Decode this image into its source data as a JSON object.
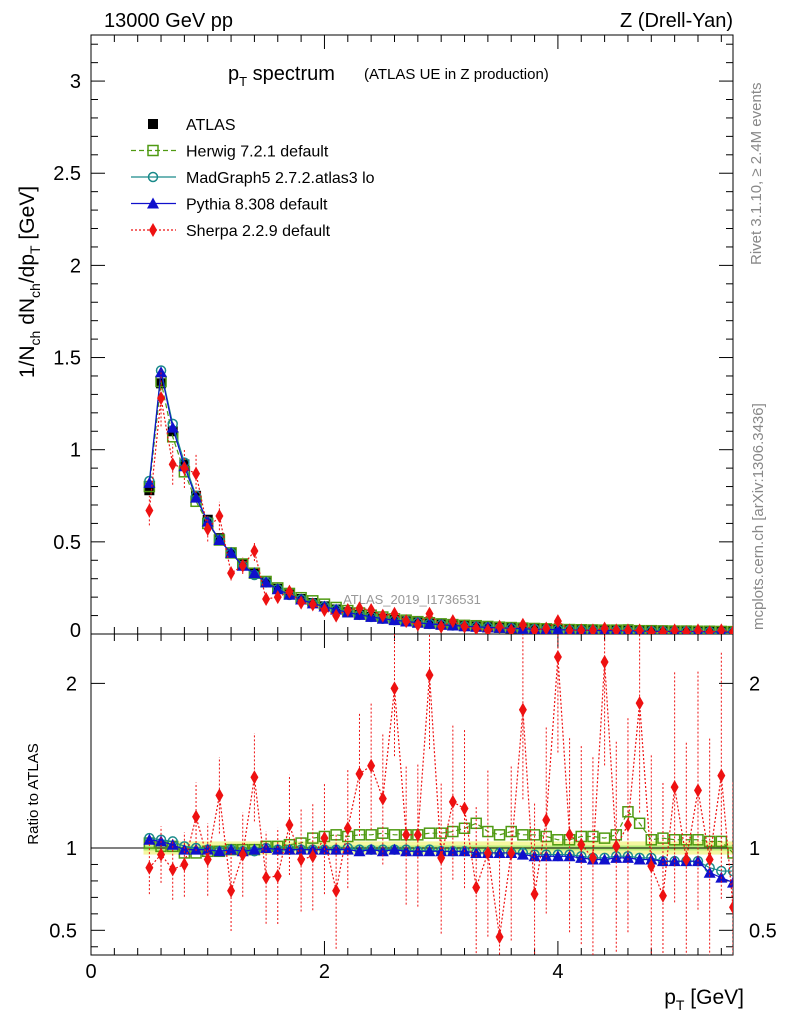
{
  "header": {
    "left": "13000 GeV pp",
    "right": "Z (Drell-Yan)"
  },
  "side_labels": {
    "rivet": "Rivet 3.1.10, ≥ 2.4M events",
    "mcplots": "mcplots.cern.ch [arXiv:1306.3436]"
  },
  "watermark": "ATLAS_2019_I1736531",
  "title": {
    "main": "p",
    "main_sub": "T",
    "main_rest": " spectrum",
    "suffix": "(ATLAS UE in Z production)"
  },
  "axes": {
    "top_ylabel": {
      "a": "1/N",
      "a_sub": "ch",
      "b": " dN",
      "b_sub": "ch",
      "c": "/dp",
      "c_sub": "T",
      "d": " [GeV]"
    },
    "bottom_ylabel": "Ratio to ATLAS",
    "xlabel": {
      "a": "p",
      "a_sub": "T",
      "b": " [GeV]"
    }
  },
  "colors": {
    "atlas": "#000000",
    "herwig": "#4f9a12",
    "madgraph": "#1a8a8a",
    "pythia": "#1010cc",
    "sherpa": "#ee1111",
    "band_outer": "#f4f7a0",
    "band_inner": "#b6ec7a"
  },
  "chart_data": [
    {
      "type": "scatter",
      "title": "p_T spectrum (ATLAS UE in Z production)",
      "xlabel": "p_T [GeV]",
      "ylabel": "1/N_ch dN_ch/dp_T [GeV]",
      "xlim": [
        0,
        5.5
      ],
      "ylim": [
        0,
        3.25
      ],
      "x_ticks": [
        0,
        2,
        4
      ],
      "y_ticks": [
        0.5,
        1,
        1.5,
        2,
        2.5,
        3
      ],
      "y_tick_labels": [
        "0.5",
        "1",
        "1.5",
        "2",
        "2.5",
        "3"
      ],
      "x": [
        0.5,
        0.6,
        0.7,
        0.8,
        0.9,
        1.0,
        1.1,
        1.2,
        1.3,
        1.4,
        1.5,
        1.6,
        1.7,
        1.8,
        1.9,
        2.0,
        2.1,
        2.2,
        2.3,
        2.4,
        2.5,
        2.6,
        2.7,
        2.8,
        2.9,
        3.0,
        3.1,
        3.2,
        3.3,
        3.4,
        3.5,
        3.6,
        3.7,
        3.8,
        3.9,
        4.0,
        4.1,
        4.2,
        4.3,
        4.4,
        4.5,
        4.6,
        4.7,
        4.8,
        4.9,
        5.0,
        5.1,
        5.2,
        5.3,
        5.4,
        5.5
      ],
      "series": [
        {
          "name": "ATLAS",
          "key": "atlas",
          "marker": "square",
          "values": [
            0.78,
            1.36,
            1.1,
            0.92,
            0.75,
            0.62,
            0.52,
            0.44,
            0.38,
            0.33,
            0.28,
            0.245,
            0.215,
            0.19,
            0.168,
            0.15,
            0.133,
            0.118,
            0.105,
            0.094,
            0.084,
            0.076,
            0.069,
            0.062,
            0.056,
            0.051,
            0.047,
            0.043,
            0.04,
            0.037,
            0.034,
            0.032,
            0.03,
            0.028,
            0.026,
            0.024,
            0.023,
            0.022,
            0.021,
            0.02,
            0.019,
            0.018,
            0.017,
            0.016,
            0.016,
            0.015,
            0.015,
            0.014,
            0.014,
            0.013,
            0.013
          ]
        },
        {
          "name": "Herwig 7.2.1 default",
          "key": "herwig",
          "marker": "open-square",
          "dash": "5,3",
          "values": [
            0.8,
            1.37,
            1.07,
            0.88,
            0.72,
            0.6,
            0.51,
            0.44,
            0.38,
            0.33,
            0.285,
            0.25,
            0.22,
            0.197,
            0.18,
            0.162,
            0.144,
            0.127,
            0.114,
            0.102,
            0.092,
            0.082,
            0.075,
            0.067,
            0.061,
            0.055,
            0.051,
            0.047,
            0.045,
            0.041,
            0.037,
            0.035,
            0.032,
            0.03,
            0.028,
            0.025,
            0.024,
            0.023,
            0.022,
            0.021,
            0.021,
            0.022,
            0.018,
            0.018,
            0.017,
            0.016,
            0.016,
            0.015,
            0.015,
            0.014,
            0.013
          ]
        },
        {
          "name": "MadGraph5 2.7.2.atlas3 lo",
          "key": "madgraph",
          "marker": "open-circle",
          "values": [
            0.83,
            1.43,
            1.14,
            0.93,
            0.75,
            0.61,
            0.51,
            0.44,
            0.37,
            0.32,
            0.28,
            0.243,
            0.212,
            0.188,
            0.166,
            0.149,
            0.132,
            0.118,
            0.104,
            0.093,
            0.083,
            0.075,
            0.068,
            0.061,
            0.055,
            0.05,
            0.046,
            0.042,
            0.039,
            0.036,
            0.033,
            0.031,
            0.029,
            0.027,
            0.025,
            0.023,
            0.022,
            0.021,
            0.019,
            0.019,
            0.018,
            0.017,
            0.016,
            0.015,
            0.014,
            0.014,
            0.014,
            0.013,
            0.012,
            0.011,
            0.011
          ]
        },
        {
          "name": "Pythia 8.308 default",
          "key": "pythia",
          "marker": "triangle",
          "values": [
            0.82,
            1.42,
            1.12,
            0.91,
            0.74,
            0.61,
            0.51,
            0.44,
            0.37,
            0.33,
            0.28,
            0.243,
            0.213,
            0.187,
            0.166,
            0.149,
            0.132,
            0.117,
            0.104,
            0.093,
            0.083,
            0.075,
            0.068,
            0.061,
            0.055,
            0.05,
            0.046,
            0.042,
            0.039,
            0.036,
            0.033,
            0.031,
            0.028,
            0.026,
            0.025,
            0.023,
            0.022,
            0.021,
            0.019,
            0.019,
            0.018,
            0.017,
            0.016,
            0.015,
            0.014,
            0.014,
            0.014,
            0.013,
            0.012,
            0.011,
            0.01
          ]
        },
        {
          "name": "Sherpa 2.2.9 default",
          "key": "sherpa",
          "marker": "diamond",
          "dash": "2,2",
          "values": [
            0.67,
            1.28,
            0.92,
            0.9,
            0.87,
            0.57,
            0.64,
            0.33,
            0.37,
            0.45,
            0.19,
            0.2,
            0.23,
            0.17,
            0.16,
            0.13,
            0.1,
            0.13,
            0.14,
            0.13,
            0.1,
            0.11,
            0.07,
            0.05,
            0.11,
            0.04,
            0.07,
            0.04,
            0.03,
            0.02,
            0.04,
            0.02,
            0.05,
            0.02,
            0.03,
            0.07,
            0.02,
            0.02,
            0.02,
            0.03,
            0.02,
            0.02,
            0.02,
            0.01,
            0.01,
            0.02,
            0.01,
            0.02,
            0.01,
            0.02,
            0.01
          ]
        }
      ]
    },
    {
      "type": "scatter",
      "title": "",
      "xlabel": "p_T [GeV]",
      "ylabel": "Ratio to ATLAS",
      "xlim": [
        0,
        5.5
      ],
      "ylim": [
        0.35,
        2.3
      ],
      "y_ticks": [
        0.5,
        1,
        2
      ],
      "y_tick_labels": [
        "0.5",
        "1",
        "2"
      ],
      "reference_line": 1,
      "x": [
        0.5,
        0.6,
        0.7,
        0.8,
        0.9,
        1.0,
        1.1,
        1.2,
        1.3,
        1.4,
        1.5,
        1.6,
        1.7,
        1.8,
        1.9,
        2.0,
        2.1,
        2.2,
        2.3,
        2.4,
        2.5,
        2.6,
        2.7,
        2.8,
        2.9,
        3.0,
        3.1,
        3.2,
        3.3,
        3.4,
        3.5,
        3.6,
        3.7,
        3.8,
        3.9,
        4.0,
        4.1,
        4.2,
        4.3,
        4.4,
        4.5,
        4.6,
        4.7,
        4.8,
        4.9,
        5.0,
        5.1,
        5.2,
        5.3,
        5.4,
        5.5
      ],
      "series": [
        {
          "name": "Herwig 7.2.1 default",
          "key": "herwig",
          "marker": "open-square",
          "dash": "5,3",
          "values": [
            1.03,
            1.01,
            1.01,
            0.97,
            0.97,
            0.98,
            0.98,
            0.99,
            0.99,
            0.99,
            1.01,
            1.01,
            1.02,
            1.03,
            1.06,
            1.07,
            1.08,
            1.07,
            1.08,
            1.08,
            1.09,
            1.08,
            1.08,
            1.08,
            1.09,
            1.09,
            1.1,
            1.12,
            1.15,
            1.1,
            1.08,
            1.1,
            1.08,
            1.08,
            1.07,
            1.05,
            1.05,
            1.07,
            1.07,
            1.06,
            1.08,
            1.22,
            1.15,
            1.05,
            1.06,
            1.05,
            1.05,
            1.05,
            1.04,
            1.04,
            0.97
          ]
        },
        {
          "name": "MadGraph5 2.7.2.atlas3 lo",
          "key": "madgraph",
          "marker": "open-circle",
          "values": [
            1.06,
            1.05,
            1.04,
            1.01,
            1.0,
            0.99,
            0.98,
            0.99,
            0.98,
            0.98,
            1.0,
            0.99,
            0.99,
            0.99,
            0.99,
            0.99,
            0.99,
            1.0,
            0.99,
            0.99,
            0.99,
            0.99,
            0.99,
            0.98,
            0.99,
            0.98,
            0.98,
            0.98,
            0.97,
            0.97,
            0.97,
            0.97,
            0.97,
            0.96,
            0.96,
            0.96,
            0.96,
            0.95,
            0.94,
            0.94,
            0.95,
            0.95,
            0.94,
            0.94,
            0.92,
            0.92,
            0.92,
            0.92,
            0.88,
            0.86,
            0.86
          ]
        },
        {
          "name": "Pythia 8.308 default",
          "key": "pythia",
          "marker": "triangle",
          "values": [
            1.05,
            1.04,
            1.02,
            0.99,
            0.99,
            0.99,
            0.98,
            0.99,
            0.98,
            0.99,
            1.0,
            0.99,
            0.99,
            0.99,
            0.99,
            0.99,
            0.99,
            0.99,
            0.98,
            0.99,
            0.98,
            0.99,
            0.98,
            0.98,
            0.98,
            0.98,
            0.98,
            0.98,
            0.97,
            0.97,
            0.97,
            0.97,
            0.96,
            0.95,
            0.95,
            0.95,
            0.95,
            0.94,
            0.93,
            0.93,
            0.94,
            0.94,
            0.93,
            0.93,
            0.92,
            0.92,
            0.92,
            0.92,
            0.85,
            0.82,
            0.79
          ]
        },
        {
          "name": "Sherpa 2.2.9 default",
          "key": "sherpa",
          "marker": "diamond",
          "dash": "2,2",
          "values": [
            0.88,
            0.96,
            0.87,
            0.9,
            1.19,
            0.93,
            1.32,
            0.74,
            0.96,
            1.43,
            0.82,
            0.83,
            1.14,
            0.93,
            0.95,
            1.06,
            0.74,
            1.12,
            1.45,
            1.5,
            1.3,
            1.97,
            1.08,
            1.08,
            2.05,
            0.94,
            1.28,
            1.24,
            0.76,
            0.97,
            0.46,
            0.97,
            1.84,
            0.72,
            1.17,
            2.16,
            1.08,
            1.02,
            0.94,
            2.13,
            1.01,
            1.14,
            1.88,
            0.89,
            0.71,
            1.37,
            0.93,
            1.35,
            0.93,
            1.44,
            0.64
          ]
        }
      ]
    }
  ]
}
